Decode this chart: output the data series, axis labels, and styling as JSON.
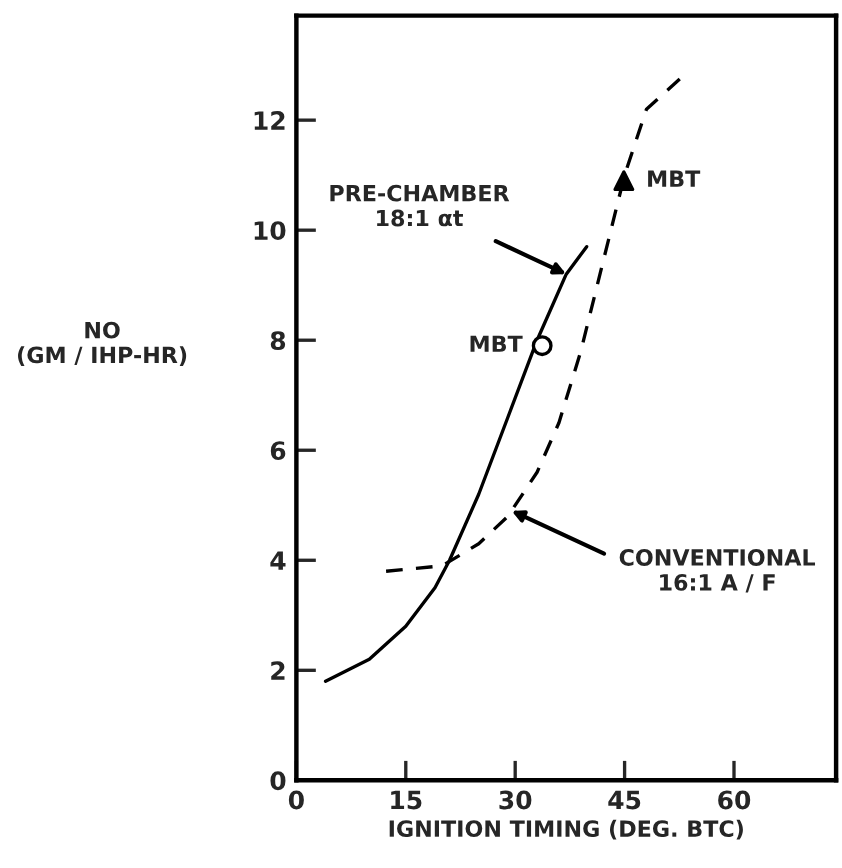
{
  "chart_data": {
    "type": "line",
    "xlabel": "IGNITION TIMING (DEG. BTC)",
    "ylabel": "NO\n(GM / IHP-HR)",
    "xlim": [
      0,
      74
    ],
    "ylim": [
      0,
      13.9
    ],
    "xticks": [
      0,
      15,
      30,
      45,
      60
    ],
    "yticks": [
      0,
      2,
      4,
      6,
      8,
      10,
      12
    ],
    "grid": false,
    "legend": false,
    "series": [
      {
        "line_style": "solid",
        "color": "#000000",
        "x": [
          4,
          10,
          15,
          19,
          21,
          25,
          29,
          33,
          37,
          39.8
        ],
        "values": [
          1.8,
          2.2,
          2.8,
          3.5,
          4.0,
          5.2,
          6.6,
          8.0,
          9.2,
          9.7
        ]
      },
      {
        "line_style": "dashed",
        "color": "#000000",
        "x": [
          12.3,
          20,
          25,
          29,
          33,
          36,
          39,
          42,
          45,
          48,
          53
        ],
        "values": [
          3.8,
          3.9,
          4.3,
          4.8,
          5.6,
          6.5,
          7.8,
          9.4,
          11,
          12.2,
          12.8
        ]
      },
      {
        "type": "scatter",
        "marker": "circle",
        "color": "#000000",
        "x": [
          33.7
        ],
        "values": [
          7.9
        ]
      },
      {
        "type": "scatter",
        "marker": "triangle",
        "color": "#000000",
        "x": [
          44.9
        ],
        "values": [
          10.9
        ]
      }
    ],
    "annotations": [
      {
        "text": "PRE-CHAMBER\n18:1 αt",
        "x": 37,
        "y": 9.2
      },
      {
        "text": "CONVENTIONAL\n16:1 A / F",
        "x": 29.5,
        "y": 4.9
      },
      {
        "text": "MBT",
        "x": 33.7,
        "y": 7.9
      },
      {
        "text": "MBT",
        "x": 44.9,
        "y": 10.9
      }
    ]
  }
}
